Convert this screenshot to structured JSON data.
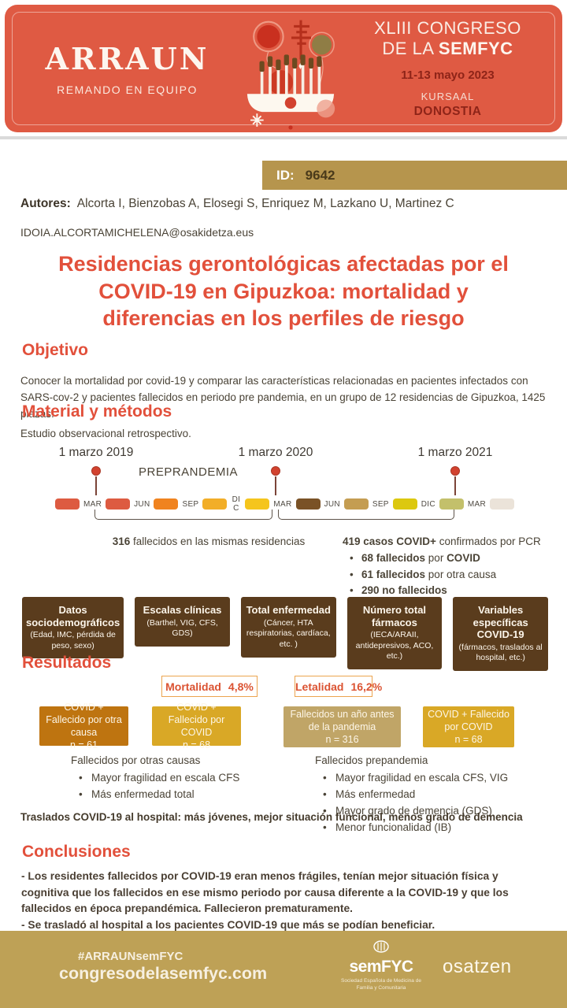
{
  "colors": {
    "coral": "#DF5A43",
    "maroon": "#8E2418",
    "gold_badge": "#B6954D",
    "footer_gold": "#BEA156",
    "dark_brown_box": "#5A3C1D",
    "ochre_box": "#BE7410",
    "gold_box": "#D9A826",
    "tan_box": "#C0A567",
    "heading_red": "#E2503B",
    "body_text": "#4A4336",
    "stat_border": "#ECA44F",
    "stat_text": "#DB5332",
    "timeline_segments": [
      "#DD5B41",
      "#DD5B41",
      "#F0831F",
      "#F2AE28",
      "#F5C51D",
      "#7A5226",
      "#C49D52",
      "#DCC80F",
      "#C3C06B",
      "#EBE3D9"
    ]
  },
  "header": {
    "logo_title": "ARRAUN",
    "logo_subtitle": "REMANDO EN EQUIPO",
    "congress_line1": "XLIII CONGRESO",
    "congress_line2_prefix": "DE LA ",
    "congress_line2_bold": "SEMFYC",
    "dates": "11-13 mayo 2023",
    "venue": "KURSAAL",
    "city": "DONOSTIA"
  },
  "id_badge": {
    "label": "ID:",
    "value": "9642"
  },
  "authors": {
    "label": "Autores:",
    "names": "Alcorta I, Bienzobas A, Elosegi S, Enriquez M, Lazkano U, Martinez C",
    "email": "IDOIA.ALCORTAMICHELENA@osakidetza.eus"
  },
  "title_lines": [
    "Residencias gerontológicas afectadas por el",
    "COVID-19 en Gipuzkoa: mortalidad y",
    "diferencias en los perfiles de riesgo"
  ],
  "objetivo": {
    "heading": "Objetivo",
    "body": "Conocer la mortalidad por covid-19 y comparar las características relacionadas en pacientes infectados con SARS-cov-2 y pacientes fallecidos en periodo pre pandemia, en un grupo de 12 residencias de Gipuzkoa, 1425 plazas."
  },
  "metodos": {
    "heading": "Material y métodos",
    "body": "Estudio observacional retrospectivo."
  },
  "timeline": {
    "milestones": [
      "1 marzo 2019",
      "1 marzo 2020",
      "1 marzo 2021"
    ],
    "phase_label": "PREPRANDEMIA",
    "months": [
      "MAR",
      "JUN",
      "SEP",
      "DIC",
      "MAR",
      "JUN",
      "SEP",
      "DIC",
      "MAR"
    ],
    "left_note": [
      {
        "t": "316",
        "b": true
      },
      {
        "t": " fallecidos en las mismas residencias",
        "b": false
      }
    ],
    "right_note": [
      {
        "t": "419 casos COVID+",
        "b": true
      },
      {
        "t": " confirmados por PCR",
        "b": false
      }
    ],
    "right_bullets": [
      [
        {
          "t": "68 fallecidos",
          "b": true
        },
        {
          "t": " por ",
          "b": false
        },
        {
          "t": "COVID",
          "b": true
        }
      ],
      [
        {
          "t": "61 fallecidos",
          "b": true
        },
        {
          "t": " por otra causa",
          "b": false
        }
      ],
      [
        {
          "t": "290 no fallecidos",
          "b": true
        }
      ]
    ]
  },
  "variable_boxes": [
    {
      "title": "Datos sociodemográficos",
      "subtitle": "(Edad, IMC, pérdida de peso, sexo)"
    },
    {
      "title": "Escalas clínicas",
      "subtitle": "(Barthel, VIG, CFS, GDS)"
    },
    {
      "title": "Total enfermedad",
      "subtitle": "(Cáncer, HTA respiratorias, cardíaca, etc. )"
    },
    {
      "title": "Número total fármacos",
      "subtitle": "(IECA/ARAII, antidepresivos, ACO, etc.)"
    },
    {
      "title": "Variables específicas COVID-19",
      "subtitle": "(fármacos, traslados al hospital, etc.)"
    }
  ],
  "resultados": {
    "heading": "Resultados"
  },
  "stats": [
    {
      "label": "Mortalidad",
      "value": "4,8%"
    },
    {
      "label": "Letalidad",
      "value": "16,2%"
    }
  ],
  "result_boxes": [
    {
      "label": "COVID + Fallecido por otra causa",
      "n": "n = 61"
    },
    {
      "label": "COVID + Fallecido por COVID",
      "n": "n = 68"
    },
    {
      "label": "Fallecidos un año antes de la pandemia",
      "n": "n = 316"
    },
    {
      "label": "COVID + Fallecido por COVID",
      "n": "n = 68"
    }
  ],
  "findings": [
    {
      "title": "Fallecidos por otras causas",
      "bullets": [
        "Mayor fragilidad en escala CFS",
        "Más enfermedad total"
      ]
    },
    {
      "title": "Fallecidos prepandemia",
      "bullets": [
        "Mayor fragilidad en escala CFS, VIG",
        "Más enfermedad",
        "Mayor grado de demencia (GDS)",
        "Menor funcionalidad (IB)"
      ]
    }
  ],
  "highlight": "Traslados COVID-19 al hospital: más jóvenes, mejor situación funcional, menos grado de demencia",
  "conclusiones": {
    "heading": "Conclusiones",
    "lines": [
      "- Los residentes fallecidos por COVID-19 eran menos frágiles, tenían mejor situación física y cognitiva que los fallecidos en ese mismo periodo por causa diferente a la COVID-19 y que los fallecidos en época prepandémica. Fallecieron prematuramente.",
      "- Se trasladó al hospital a los pacientes COVID-19 que más se podían beneficiar."
    ]
  },
  "footer": {
    "hashtag": "#ARRAUNsemFYC",
    "url": "congresodelasemfyc.com",
    "semfyc_name": "semFYC",
    "semfyc_tagline": "Sociedad Española de Medicina de Familia y Comunitaria",
    "osatzen_name": "osatzen"
  }
}
